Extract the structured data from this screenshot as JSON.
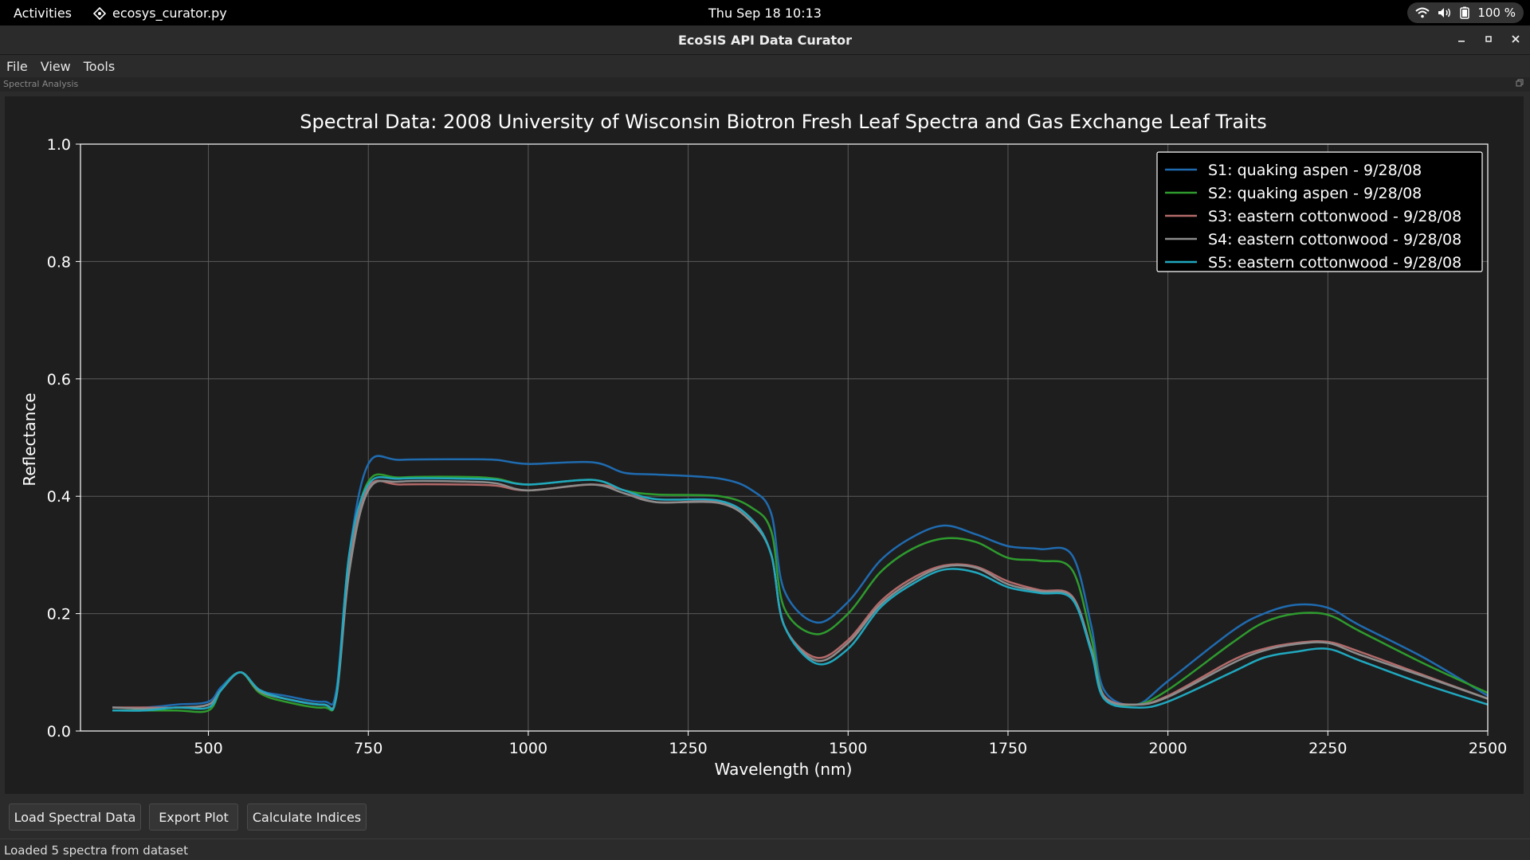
{
  "topbar": {
    "activities": "Activities",
    "app_name": "ecosys_curator.py",
    "clock": "Thu Sep 18  10:13",
    "battery": "100 %"
  },
  "window": {
    "title": "EcoSIS API Data Curator"
  },
  "menubar": {
    "items": [
      "File",
      "View",
      "Tools"
    ]
  },
  "dock": {
    "title": "Spectral Analysis"
  },
  "buttons": {
    "load": "Load Spectral Data",
    "export": "Export Plot",
    "indices": "Calculate Indices"
  },
  "status": {
    "text": "Loaded 5 spectra from dataset"
  },
  "chart_data": {
    "type": "line",
    "title": "Spectral Data: 2008 University of Wisconsin Biotron Fresh Leaf Spectra and Gas Exchange Leaf Traits",
    "xlabel": "Wavelength (nm)",
    "ylabel": "Reflectance",
    "xlim": [
      300,
      2500
    ],
    "ylim": [
      0.0,
      1.0
    ],
    "xticks": [
      500,
      750,
      1000,
      1250,
      1500,
      1750,
      2000,
      2250,
      2500
    ],
    "yticks": [
      0.0,
      0.2,
      0.4,
      0.6,
      0.8,
      1.0
    ],
    "grid": true,
    "legend_position": "top-right",
    "background": "#1e1e1e",
    "x": [
      350,
      400,
      450,
      500,
      520,
      550,
      580,
      620,
      680,
      700,
      720,
      750,
      800,
      900,
      950,
      1000,
      1100,
      1150,
      1200,
      1300,
      1350,
      1380,
      1400,
      1450,
      1500,
      1550,
      1600,
      1650,
      1700,
      1750,
      1800,
      1850,
      1880,
      1900,
      1950,
      2000,
      2100,
      2150,
      2200,
      2250,
      2300,
      2400,
      2500
    ],
    "series": [
      {
        "name": "S1: quaking aspen - 9/28/08",
        "color": "#1f6bb0",
        "values": [
          0.04,
          0.04,
          0.045,
          0.05,
          0.075,
          0.1,
          0.07,
          0.06,
          0.05,
          0.07,
          0.3,
          0.455,
          0.462,
          0.463,
          0.462,
          0.455,
          0.458,
          0.44,
          0.437,
          0.43,
          0.41,
          0.37,
          0.24,
          0.185,
          0.22,
          0.29,
          0.33,
          0.35,
          0.335,
          0.315,
          0.31,
          0.3,
          0.18,
          0.07,
          0.045,
          0.085,
          0.17,
          0.2,
          0.215,
          0.21,
          0.18,
          0.125,
          0.06
        ]
      },
      {
        "name": "S2: quaking aspen - 9/28/08",
        "color": "#2e9b2e",
        "values": [
          0.035,
          0.035,
          0.035,
          0.035,
          0.07,
          0.1,
          0.065,
          0.05,
          0.04,
          0.06,
          0.29,
          0.425,
          0.432,
          0.433,
          0.43,
          0.42,
          0.428,
          0.41,
          0.403,
          0.4,
          0.38,
          0.34,
          0.21,
          0.165,
          0.2,
          0.27,
          0.31,
          0.328,
          0.322,
          0.295,
          0.29,
          0.275,
          0.16,
          0.06,
          0.045,
          0.07,
          0.15,
          0.185,
          0.2,
          0.198,
          0.17,
          0.115,
          0.065
        ]
      },
      {
        "name": "S3: eastern cottonwood - 9/28/08",
        "color": "#b36a6a",
        "values": [
          0.04,
          0.04,
          0.04,
          0.045,
          0.07,
          0.1,
          0.07,
          0.055,
          0.045,
          0.06,
          0.28,
          0.415,
          0.42,
          0.42,
          0.418,
          0.41,
          0.42,
          0.41,
          0.39,
          0.39,
          0.36,
          0.3,
          0.18,
          0.125,
          0.155,
          0.22,
          0.26,
          0.282,
          0.28,
          0.255,
          0.24,
          0.23,
          0.14,
          0.06,
          0.045,
          0.06,
          0.12,
          0.14,
          0.15,
          0.152,
          0.135,
          0.095,
          0.055
        ]
      },
      {
        "name": "S4: eastern cottonwood - 9/28/08",
        "color": "#8c8c8c",
        "values": [
          0.04,
          0.038,
          0.04,
          0.045,
          0.07,
          0.1,
          0.068,
          0.055,
          0.045,
          0.058,
          0.27,
          0.41,
          0.425,
          0.425,
          0.422,
          0.41,
          0.42,
          0.405,
          0.39,
          0.388,
          0.355,
          0.3,
          0.18,
          0.12,
          0.15,
          0.215,
          0.255,
          0.28,
          0.278,
          0.25,
          0.238,
          0.228,
          0.14,
          0.058,
          0.045,
          0.058,
          0.115,
          0.137,
          0.148,
          0.15,
          0.13,
          0.093,
          0.055
        ]
      },
      {
        "name": "S5: eastern cottonwood - 9/28/08",
        "color": "#20a8bf",
        "values": [
          0.035,
          0.035,
          0.04,
          0.04,
          0.07,
          0.1,
          0.07,
          0.055,
          0.045,
          0.06,
          0.3,
          0.42,
          0.43,
          0.43,
          0.428,
          0.42,
          0.428,
          0.41,
          0.395,
          0.392,
          0.36,
          0.3,
          0.18,
          0.115,
          0.14,
          0.21,
          0.25,
          0.275,
          0.27,
          0.245,
          0.235,
          0.225,
          0.135,
          0.055,
          0.04,
          0.05,
          0.1,
          0.125,
          0.135,
          0.14,
          0.12,
          0.08,
          0.045
        ]
      }
    ]
  }
}
